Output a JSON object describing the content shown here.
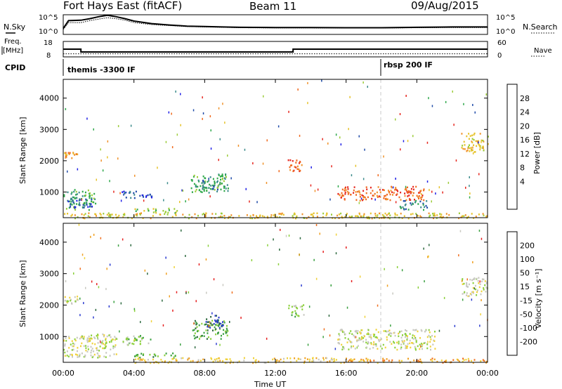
{
  "header": {
    "station": "Fort Hays East (fitACF)",
    "beam": "Beam 11",
    "date": "09/Aug/2015"
  },
  "labels": {
    "nsky": "N.Sky",
    "nsearch": "N.Search",
    "freq_line1": "Freq.",
    "freq_line2": "[MHz]",
    "nave": "Nave",
    "cpid": "CPID"
  },
  "cpid_segments": [
    {
      "label": "themis -3300 IF",
      "start_hour": 0
    },
    {
      "label": "rbsp 200 IF",
      "start_hour": 18
    }
  ],
  "chart_data": [
    {
      "type": "line",
      "name": "noise",
      "series": [
        {
          "name": "N.Sky"
        },
        {
          "name": "N.Search"
        }
      ],
      "left_ticks": [
        "10^5",
        "10^0"
      ],
      "right_ticks": [
        "10^5",
        "10^0"
      ],
      "x": [
        0,
        0.3,
        1,
        1.5,
        2,
        2.5,
        3,
        3.5,
        4,
        5,
        6,
        7,
        8,
        9,
        10,
        12,
        14,
        16,
        18,
        20,
        22,
        24
      ],
      "nsky": [
        0.3,
        0.7,
        0.72,
        0.8,
        0.9,
        0.97,
        0.9,
        0.8,
        0.68,
        0.55,
        0.48,
        0.42,
        0.4,
        0.38,
        0.36,
        0.35,
        0.35,
        0.34,
        0.34,
        0.36,
        0.38,
        0.38
      ],
      "nsearch": [
        0.25,
        0.6,
        0.6,
        0.7,
        0.78,
        0.85,
        0.8,
        0.72,
        0.6,
        0.5,
        0.45,
        0.4,
        0.38,
        0.36,
        0.34,
        0.33,
        0.33,
        0.32,
        0.32,
        0.34,
        0.35,
        0.35
      ]
    },
    {
      "type": "line",
      "name": "frequency",
      "left_ticks": [
        "18",
        "8"
      ],
      "right_ticks": [
        "60",
        "0"
      ],
      "freq_mhz": [
        {
          "x": 0,
          "y": 13.0
        },
        {
          "x": 1,
          "y": 11.2
        },
        {
          "x": 13,
          "y": 13.0
        },
        {
          "x": 24,
          "y": 13.0
        }
      ],
      "nave": [
        {
          "x": 0,
          "y": 12
        },
        {
          "x": 24,
          "y": 12
        }
      ]
    },
    {
      "type": "heatmap",
      "name": "power",
      "ylabel": "Slant Range [km]",
      "yticks": [
        1000,
        2000,
        3000,
        4000
      ],
      "ylim": [
        180,
        4600
      ],
      "xlim": [
        0,
        24
      ],
      "colorbar": {
        "label": "Power [dB]",
        "ticks": [
          "4",
          "8",
          "12",
          "16",
          "20",
          "24",
          "28"
        ],
        "colors": [
          "#1f1ee6",
          "#1f4ba8",
          "#3a8a8a",
          "#2ea84a",
          "#9ccc3a",
          "#e6c229",
          "#f0922a",
          "#f06a1e",
          "#e6261e"
        ]
      },
      "regions": [
        {
          "t0": 0.0,
          "t1": 1.8,
          "r0": 450,
          "r1": 1100,
          "level": 5
        },
        {
          "t0": 0.2,
          "t1": 1.6,
          "r0": 500,
          "r1": 800,
          "level": 7
        },
        {
          "t0": 3.3,
          "t1": 5.0,
          "r0": 800,
          "r1": 1050,
          "level": 7
        },
        {
          "t0": 4.0,
          "t1": 6.5,
          "r0": 350,
          "r1": 500,
          "level": 4
        },
        {
          "t0": 7.2,
          "t1": 9.3,
          "r0": 1000,
          "r1": 1600,
          "level": 5
        },
        {
          "t0": 7.6,
          "t1": 8.8,
          "r0": 1050,
          "r1": 1400,
          "level": 6
        },
        {
          "t0": 12.7,
          "t1": 13.6,
          "r0": 1650,
          "r1": 2050,
          "level": 1
        },
        {
          "t0": 15.5,
          "t1": 20.5,
          "r0": 750,
          "r1": 1200,
          "level": 1
        },
        {
          "t0": 19.0,
          "t1": 20.6,
          "r0": 450,
          "r1": 750,
          "level": 6
        },
        {
          "t0": 22.5,
          "t1": 24.0,
          "r0": 2300,
          "r1": 2900,
          "level": 3
        },
        {
          "t0": 0.0,
          "t1": 0.8,
          "r0": 2100,
          "r1": 2300,
          "level": 2
        },
        {
          "t0": 0.0,
          "t1": 24.0,
          "r0": 180,
          "r1": 350,
          "level": 3
        }
      ]
    },
    {
      "type": "heatmap",
      "name": "velocity",
      "ylabel": "Slant Range [km]",
      "yticks": [
        1000,
        2000,
        3000,
        4000
      ],
      "ylim": [
        180,
        4600
      ],
      "xlim": [
        0,
        24
      ],
      "xlabel": "Time UT",
      "xticks": [
        "00:00",
        "04:00",
        "08:00",
        "12:00",
        "16:00",
        "20:00",
        "00:00"
      ],
      "colorbar": {
        "label": "Velocity [m s⁻¹]",
        "ticks": [
          "200",
          "100",
          "50",
          "15",
          "-15",
          "-50",
          "-100",
          "-200"
        ],
        "colors": [
          "#2a3ad0",
          "#2e6a40",
          "#3aa040",
          "#8ad03a",
          "#c8c8c0",
          "#f0d23a",
          "#f0a020",
          "#f07020",
          "#e62020"
        ]
      },
      "regions": [
        {
          "t0": 0.0,
          "t1": 3.0,
          "r0": 350,
          "r1": 1100,
          "level": 4
        },
        {
          "t0": 3.3,
          "t1": 5.0,
          "r0": 750,
          "r1": 1050,
          "level": 3
        },
        {
          "t0": 4.0,
          "t1": 6.5,
          "r0": 350,
          "r1": 500,
          "level": 2
        },
        {
          "t0": 7.2,
          "t1": 9.3,
          "r0": 950,
          "r1": 1550,
          "level": 2
        },
        {
          "t0": 8.0,
          "t1": 9.0,
          "r0": 1300,
          "r1": 1700,
          "level": 0
        },
        {
          "t0": 12.7,
          "t1": 13.6,
          "r0": 1650,
          "r1": 2050,
          "level": 3
        },
        {
          "t0": 15.5,
          "t1": 21.0,
          "r0": 600,
          "r1": 1250,
          "level": 4
        },
        {
          "t0": 22.5,
          "t1": 24.0,
          "r0": 2300,
          "r1": 2900,
          "level": 4
        },
        {
          "t0": 0.0,
          "t1": 0.8,
          "r0": 2050,
          "r1": 2300,
          "level": 4
        },
        {
          "t0": 4.0,
          "t1": 16.0,
          "r0": 180,
          "r1": 350,
          "level": 5
        },
        {
          "t0": 16.0,
          "t1": 24.0,
          "r0": 180,
          "r1": 330,
          "level": 6
        }
      ]
    }
  ]
}
